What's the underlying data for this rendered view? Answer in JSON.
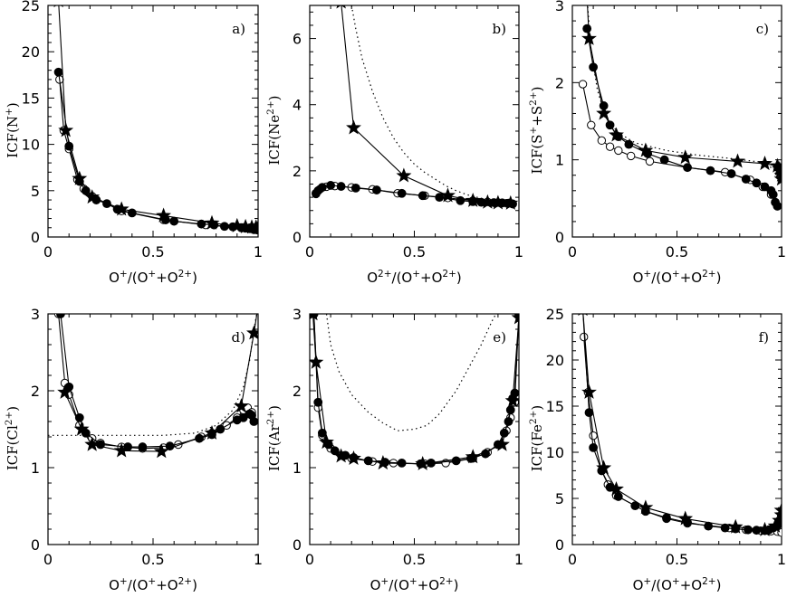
{
  "chart_data": [
    {
      "type": "line",
      "panel": "a)",
      "xlabel": "O⁺/(O⁺+O²⁺)",
      "ylabel": "ICF(N⁺)",
      "xlim": [
        0,
        1
      ],
      "ylim": [
        0,
        25
      ],
      "xticks": [
        0,
        0.5,
        1
      ],
      "xtick_labels": [
        "0",
        "0.5",
        "1"
      ],
      "yticks": [
        0,
        5,
        10,
        15,
        20,
        25
      ],
      "ytick_labels": [
        "0",
        "5",
        "10",
        "15",
        "20",
        "25"
      ],
      "series": [
        {
          "style": "open",
          "x": [
            0.055,
            0.075,
            0.1,
            0.14,
            0.17,
            0.21,
            0.35,
            0.55,
            0.75,
            0.92,
            0.96,
            0.98
          ],
          "y": [
            17.0,
            11.5,
            9.5,
            6.2,
            5.2,
            4.4,
            2.8,
            1.85,
            1.3,
            1.0,
            1.0,
            1.0
          ]
        },
        {
          "style": "filled",
          "x": [
            0.05,
            0.1,
            0.15,
            0.18,
            0.23,
            0.28,
            0.33,
            0.4,
            0.56,
            0.6,
            0.73,
            0.79,
            0.84,
            0.88,
            0.92,
            0.94,
            0.96,
            0.98,
            0.99,
            1.0
          ],
          "y": [
            17.8,
            9.8,
            6.0,
            5.0,
            4.0,
            3.6,
            3.0,
            2.6,
            1.85,
            1.7,
            1.4,
            1.3,
            1.15,
            1.1,
            1.0,
            0.95,
            0.9,
            0.8,
            0.8,
            0.75
          ]
        },
        {
          "style": "star",
          "x": [
            0.05,
            0.085,
            0.15,
            0.21,
            0.35,
            0.55,
            0.78,
            0.9,
            0.94,
            0.97,
            0.99,
            1.0
          ],
          "y": [
            25.5,
            11.5,
            6.3,
            4.3,
            3.0,
            2.3,
            1.5,
            1.2,
            1.1,
            1.05,
            1.05,
            1.0
          ]
        }
      ]
    },
    {
      "type": "line",
      "panel": "b)",
      "xlabel": "O²⁺/(O⁺+O²⁺)",
      "ylabel": "ICF(Ne²⁺)",
      "xlim": [
        0,
        1
      ],
      "ylim": [
        0,
        7
      ],
      "xticks": [
        0,
        0.5,
        1
      ],
      "xtick_labels": [
        "0",
        "0.5",
        "1"
      ],
      "yticks": [
        0,
        2,
        4,
        6
      ],
      "ytick_labels": [
        "0",
        "2",
        "4",
        "6"
      ],
      "series": [
        {
          "style": "dotted",
          "x": [
            0.2,
            0.22,
            0.25,
            0.3,
            0.35,
            0.4,
            0.45,
            0.5,
            0.55,
            0.6,
            0.65,
            0.7,
            0.75,
            0.8,
            0.85,
            0.9,
            0.95,
            0.97
          ],
          "y": [
            7.0,
            6.3,
            5.4,
            4.4,
            3.6,
            3.0,
            2.55,
            2.2,
            1.95,
            1.75,
            1.55,
            1.4,
            1.28,
            1.2,
            1.12,
            1.07,
            1.03,
            1.02
          ]
        },
        {
          "style": "open",
          "x": [
            0.03,
            0.05,
            0.08,
            0.12,
            0.2,
            0.3,
            0.42,
            0.55,
            0.66,
            0.78,
            0.85,
            0.9,
            0.94,
            0.97
          ],
          "y": [
            1.3,
            1.45,
            1.52,
            1.54,
            1.5,
            1.44,
            1.32,
            1.25,
            1.18,
            1.1,
            1.06,
            1.04,
            1.02,
            1.0
          ]
        },
        {
          "style": "filled",
          "x": [
            0.03,
            0.04,
            0.06,
            0.1,
            0.15,
            0.22,
            0.32,
            0.44,
            0.54,
            0.62,
            0.72,
            0.78,
            0.82,
            0.88,
            0.92,
            0.95,
            0.97
          ],
          "y": [
            1.32,
            1.4,
            1.5,
            1.56,
            1.53,
            1.48,
            1.42,
            1.32,
            1.25,
            1.2,
            1.1,
            1.07,
            1.05,
            1.04,
            1.03,
            1.02,
            1.0
          ]
        },
        {
          "style": "star",
          "x": [
            0.15,
            0.21,
            0.45,
            0.66,
            0.78,
            0.85,
            0.9,
            0.96
          ],
          "y": [
            7.1,
            3.3,
            1.85,
            1.25,
            1.1,
            1.05,
            1.03,
            1.02
          ]
        }
      ]
    },
    {
      "type": "line",
      "panel": "c)",
      "xlabel": "O⁺/(O⁺+O²⁺)",
      "ylabel": "ICF(S⁺+S²⁺)",
      "xlim": [
        0,
        1
      ],
      "ylim": [
        0,
        3
      ],
      "xticks": [
        0,
        0.5,
        1
      ],
      "xtick_labels": [
        "0",
        "0.5",
        "1"
      ],
      "yticks": [
        0,
        1,
        2,
        3
      ],
      "ytick_labels": [
        "0",
        "1",
        "2",
        "3"
      ],
      "series": [
        {
          "style": "dotted",
          "x": [
            0.07,
            0.09,
            0.12,
            0.16,
            0.22,
            0.3,
            0.45,
            0.6,
            0.75,
            0.9,
            0.95,
            0.98,
            1.0
          ],
          "y": [
            3.1,
            2.4,
            1.9,
            1.55,
            1.35,
            1.22,
            1.12,
            1.06,
            1.02,
            0.97,
            0.9,
            0.85,
            0.8
          ]
        },
        {
          "style": "open",
          "x": [
            0.05,
            0.09,
            0.14,
            0.18,
            0.22,
            0.28,
            0.37,
            0.55,
            0.73,
            0.85,
            0.91,
            0.95,
            0.97,
            0.98
          ],
          "y": [
            1.98,
            1.45,
            1.25,
            1.17,
            1.12,
            1.05,
            0.98,
            0.9,
            0.84,
            0.74,
            0.65,
            0.55,
            0.45,
            0.4
          ]
        },
        {
          "style": "filled",
          "x": [
            0.07,
            0.1,
            0.15,
            0.18,
            0.22,
            0.27,
            0.36,
            0.44,
            0.55,
            0.66,
            0.76,
            0.83,
            0.88,
            0.92,
            0.95,
            0.96,
            0.97,
            0.98
          ],
          "y": [
            2.7,
            2.2,
            1.7,
            1.45,
            1.3,
            1.2,
            1.08,
            1.0,
            0.9,
            0.86,
            0.82,
            0.75,
            0.7,
            0.65,
            0.6,
            0.55,
            0.45,
            0.4
          ]
        },
        {
          "style": "star",
          "x": [
            0.07,
            0.08,
            0.15,
            0.21,
            0.35,
            0.54,
            0.79,
            0.92,
            0.98,
            0.99,
            0.995,
            1.0,
            1.0
          ],
          "y": [
            3.1,
            2.57,
            1.6,
            1.32,
            1.12,
            1.03,
            0.98,
            0.95,
            0.92,
            0.88,
            0.85,
            0.8,
            0.75
          ]
        }
      ]
    },
    {
      "type": "line",
      "panel": "d)",
      "xlabel": "O⁺/(O⁺+O²⁺)",
      "ylabel": "ICF(Cl²⁺)",
      "xlim": [
        0,
        1
      ],
      "ylim": [
        0,
        3
      ],
      "xticks": [
        0,
        0.5,
        1
      ],
      "xtick_labels": [
        "0",
        "0.5",
        "1"
      ],
      "yticks": [
        0,
        1,
        2,
        3
      ],
      "ytick_labels": [
        "0",
        "1",
        "2",
        "3"
      ],
      "series": [
        {
          "style": "dotted",
          "x": [
            0.0,
            0.2,
            0.4,
            0.55,
            0.7,
            0.8,
            0.88,
            0.93,
            0.96,
            0.98,
            1.0
          ],
          "y": [
            1.42,
            1.42,
            1.42,
            1.42,
            1.45,
            1.55,
            1.75,
            2.05,
            2.4,
            2.8,
            3.1
          ]
        },
        {
          "style": "open",
          "x": [
            0.05,
            0.08,
            0.1,
            0.15,
            0.21,
            0.25,
            0.35,
            0.45,
            0.55,
            0.62,
            0.73,
            0.78,
            0.85,
            0.9,
            0.93,
            0.95,
            0.97
          ],
          "y": [
            3.0,
            2.1,
            1.95,
            1.55,
            1.38,
            1.32,
            1.27,
            1.25,
            1.26,
            1.3,
            1.4,
            1.45,
            1.55,
            1.65,
            1.75,
            1.78,
            1.72
          ]
        },
        {
          "style": "filled",
          "x": [
            0.06,
            0.1,
            0.15,
            0.18,
            0.25,
            0.38,
            0.45,
            0.58,
            0.72,
            0.78,
            0.82,
            0.9,
            0.93,
            0.96,
            0.97,
            0.98
          ],
          "y": [
            3.0,
            2.05,
            1.65,
            1.45,
            1.3,
            1.27,
            1.27,
            1.28,
            1.38,
            1.43,
            1.5,
            1.62,
            1.65,
            1.7,
            1.68,
            1.6
          ]
        },
        {
          "style": "star",
          "x": [
            0.08,
            0.16,
            0.21,
            0.35,
            0.54,
            0.78,
            0.92,
            0.98,
            1.0
          ],
          "y": [
            1.98,
            1.5,
            1.3,
            1.22,
            1.21,
            1.45,
            1.8,
            2.75,
            3.1
          ]
        }
      ]
    },
    {
      "type": "line",
      "panel": "e)",
      "xlabel": "O⁺/(O⁺+O²⁺)",
      "ylabel": "ICF(Ar²⁺)",
      "xlim": [
        0,
        1
      ],
      "ylim": [
        0,
        3
      ],
      "xticks": [
        0,
        0.5,
        1
      ],
      "xtick_labels": [
        "0",
        "0.5",
        "1"
      ],
      "yticks": [
        0,
        1,
        2,
        3
      ],
      "ytick_labels": [
        "0",
        "1",
        "2",
        "3"
      ],
      "series": [
        {
          "style": "dotted",
          "x": [
            0.08,
            0.1,
            0.14,
            0.2,
            0.28,
            0.35,
            0.42,
            0.5,
            0.56,
            0.62,
            0.7,
            0.76,
            0.82,
            0.87,
            0.9
          ],
          "y": [
            3.0,
            2.6,
            2.25,
            1.95,
            1.72,
            1.58,
            1.48,
            1.5,
            1.55,
            1.7,
            2.0,
            2.3,
            2.6,
            2.9,
            3.05
          ]
        },
        {
          "style": "open",
          "x": [
            0.02,
            0.04,
            0.06,
            0.1,
            0.15,
            0.2,
            0.3,
            0.4,
            0.55,
            0.65,
            0.78,
            0.85,
            0.9,
            0.94,
            0.96,
            0.98,
            1.0
          ],
          "y": [
            3.0,
            1.78,
            1.42,
            1.25,
            1.16,
            1.12,
            1.08,
            1.06,
            1.05,
            1.06,
            1.12,
            1.2,
            1.3,
            1.48,
            1.65,
            1.85,
            3.0
          ]
        },
        {
          "style": "filled",
          "x": [
            0.02,
            0.04,
            0.06,
            0.09,
            0.12,
            0.17,
            0.21,
            0.28,
            0.36,
            0.44,
            0.53,
            0.58,
            0.7,
            0.77,
            0.84,
            0.9,
            0.93,
            0.95,
            0.96,
            0.97,
            0.98,
            1.0
          ],
          "y": [
            3.0,
            1.85,
            1.45,
            1.3,
            1.22,
            1.16,
            1.13,
            1.09,
            1.07,
            1.06,
            1.05,
            1.06,
            1.09,
            1.12,
            1.18,
            1.3,
            1.45,
            1.6,
            1.75,
            1.9,
            1.97,
            3.0
          ]
        },
        {
          "style": "star",
          "x": [
            0.015,
            0.03,
            0.08,
            0.15,
            0.21,
            0.35,
            0.54,
            0.78,
            0.92,
            0.97,
            1.0
          ],
          "y": [
            3.0,
            2.37,
            1.33,
            1.15,
            1.12,
            1.06,
            1.05,
            1.14,
            1.3,
            1.87,
            2.95
          ]
        }
      ]
    },
    {
      "type": "line",
      "panel": "f)",
      "xlabel": "O⁺/(O⁺+O²⁺)",
      "ylabel": "ICF(Fe²⁺)",
      "xlim": [
        0,
        1
      ],
      "ylim": [
        0,
        25
      ],
      "xticks": [
        0,
        0.5,
        1
      ],
      "xtick_labels": [
        "0",
        "0.5",
        "1"
      ],
      "yticks": [
        0,
        5,
        10,
        15,
        20,
        25
      ],
      "ytick_labels": [
        "0",
        "5",
        "10",
        "15",
        "20",
        "25"
      ],
      "series": [
        {
          "style": "open",
          "x": [
            0.055,
            0.075,
            0.1,
            0.14,
            0.17,
            0.21,
            0.35,
            0.45,
            0.55,
            0.75,
            0.83,
            0.9,
            0.95,
            0.98,
            1.0
          ],
          "y": [
            22.5,
            16.5,
            11.8,
            8.0,
            6.5,
            5.3,
            3.6,
            2.8,
            2.3,
            1.8,
            1.6,
            1.5,
            1.45,
            1.4,
            1.3
          ]
        },
        {
          "style": "filled",
          "x": [
            0.05,
            0.08,
            0.1,
            0.14,
            0.18,
            0.22,
            0.3,
            0.35,
            0.45,
            0.55,
            0.65,
            0.73,
            0.78,
            0.84,
            0.88,
            0.92,
            0.94,
            0.96,
            0.98,
            0.99,
            1.0
          ],
          "y": [
            25.5,
            14.3,
            10.5,
            8.0,
            6.2,
            5.2,
            4.2,
            3.6,
            2.9,
            2.4,
            2.0,
            1.8,
            1.7,
            1.6,
            1.55,
            1.5,
            1.6,
            1.8,
            2.1,
            2.6,
            3.1
          ]
        },
        {
          "style": "star",
          "x": [
            0.05,
            0.08,
            0.15,
            0.21,
            0.35,
            0.54,
            0.78,
            0.92,
            0.97,
            0.99,
            1.0,
            1.0
          ],
          "y": [
            25.5,
            16.5,
            8.3,
            6.0,
            4.0,
            2.8,
            1.9,
            1.6,
            2.0,
            2.6,
            3.2,
            3.7
          ]
        }
      ]
    }
  ]
}
